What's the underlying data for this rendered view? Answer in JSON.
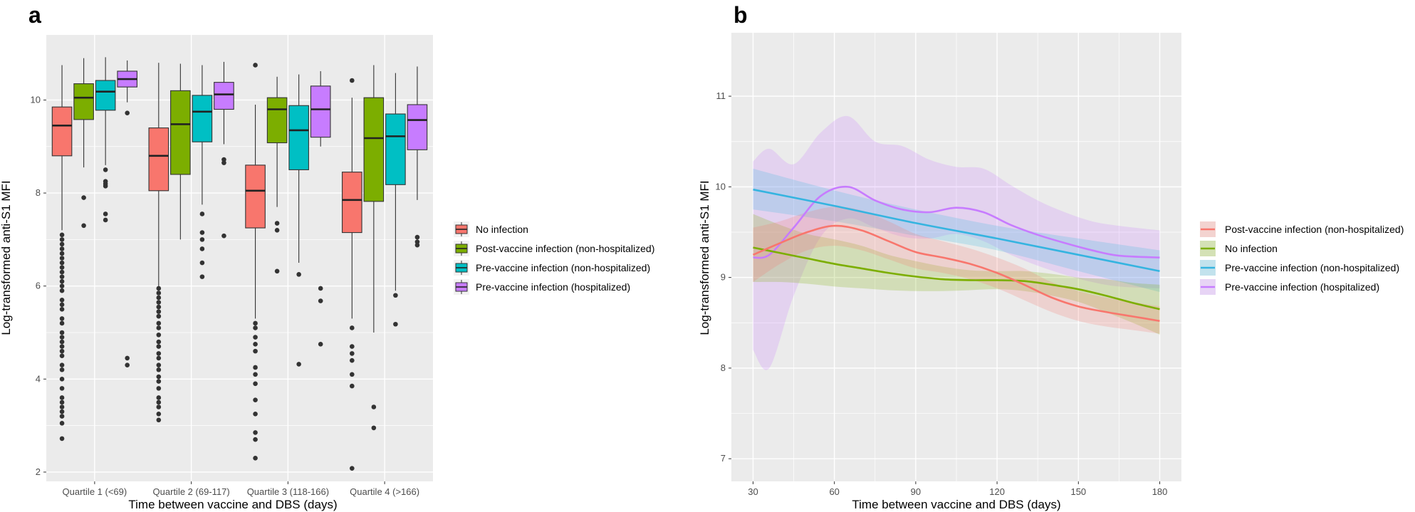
{
  "chart_data": [
    {
      "panel_label": "a",
      "type": "box",
      "xlabel": "Time between vaccine and DBS (days)",
      "ylabel": "Log-transformed anti-S1 MFI",
      "categories": [
        "Quartile 1 (<69)",
        "Quartile 2 (69-117)",
        "Quartile 3 (118-166)",
        "Quartile 4 (>166)"
      ],
      "ylim": [
        1.8,
        11.4
      ],
      "yticks": [
        2,
        4,
        6,
        8,
        10
      ],
      "legend_position": "right",
      "series": [
        {
          "name": "No infection",
          "color": "#F8766D",
          "boxes": [
            {
              "low": 7.2,
              "q1": 8.8,
              "median": 9.45,
              "q3": 9.85,
              "high": 10.75,
              "outliers": [
                7.1,
                7.0,
                6.9,
                6.8,
                6.7,
                6.6,
                6.5,
                6.4,
                6.3,
                6.2,
                6.1,
                6.0,
                5.9,
                5.7,
                5.6,
                5.5,
                5.3,
                5.2,
                5.0,
                4.9,
                4.8,
                4.7,
                4.6,
                4.5,
                4.3,
                4.2,
                4.0,
                3.8,
                3.6,
                3.5,
                3.4,
                3.3,
                3.2,
                3.05,
                2.72
              ]
            },
            {
              "low": 6.0,
              "q1": 8.05,
              "median": 8.8,
              "q3": 9.4,
              "high": 10.8,
              "outliers": [
                5.95,
                5.85,
                5.75,
                5.65,
                5.55,
                5.45,
                5.35,
                5.2,
                5.1,
                4.95,
                4.8,
                4.7,
                4.55,
                4.45,
                4.3,
                4.2,
                4.05,
                3.95,
                3.8,
                3.6,
                3.5,
                3.4,
                3.25,
                3.12
              ]
            },
            {
              "low": 5.3,
              "q1": 7.25,
              "median": 8.05,
              "q3": 8.6,
              "high": 9.9,
              "outliers": [
                10.75,
                5.2,
                5.1,
                4.9,
                4.75,
                4.6,
                4.25,
                4.1,
                3.9,
                3.55,
                3.25,
                2.85,
                2.7,
                2.3
              ]
            },
            {
              "low": 5.3,
              "q1": 7.15,
              "median": 7.85,
              "q3": 8.45,
              "high": 10.05,
              "outliers": [
                10.42,
                5.1,
                4.7,
                4.55,
                4.4,
                4.1,
                3.85,
                2.08
              ]
            }
          ]
        },
        {
          "name": "Post-vaccine infection (non-hospitalized)",
          "color": "#7CAE00",
          "boxes": [
            {
              "low": 8.55,
              "q1": 9.58,
              "median": 10.05,
              "q3": 10.35,
              "high": 10.9,
              "outliers": [
                7.9,
                7.3
              ]
            },
            {
              "low": 7.0,
              "q1": 8.4,
              "median": 9.48,
              "q3": 10.2,
              "high": 10.78,
              "outliers": []
            },
            {
              "low": 7.7,
              "q1": 9.08,
              "median": 9.8,
              "q3": 10.05,
              "high": 10.5,
              "outliers": [
                7.35,
                7.2,
                6.32
              ]
            },
            {
              "low": 5.0,
              "q1": 7.82,
              "median": 9.18,
              "q3": 10.05,
              "high": 10.75,
              "outliers": [
                3.4,
                2.95
              ]
            }
          ]
        },
        {
          "name": "Pre-vaccine infection (non-hospitalized)",
          "color": "#00BFC4",
          "boxes": [
            {
              "low": 8.6,
              "q1": 9.78,
              "median": 10.18,
              "q3": 10.42,
              "high": 10.92,
              "outliers": [
                8.5,
                8.25,
                8.2,
                8.15,
                7.55,
                7.42
              ]
            },
            {
              "low": 7.75,
              "q1": 9.1,
              "median": 9.75,
              "q3": 10.1,
              "high": 10.75,
              "outliers": [
                7.55,
                7.15,
                7.0,
                6.8,
                6.5,
                6.2
              ]
            },
            {
              "low": 6.5,
              "q1": 8.5,
              "median": 9.35,
              "q3": 9.88,
              "high": 10.55,
              "outliers": [
                6.25,
                4.32
              ]
            },
            {
              "low": 5.9,
              "q1": 8.18,
              "median": 9.22,
              "q3": 9.7,
              "high": 10.58,
              "outliers": [
                5.8,
                5.18
              ]
            }
          ]
        },
        {
          "name": "Pre-vaccine infection (hospitalized)",
          "color": "#C77CFF",
          "boxes": [
            {
              "low": 9.95,
              "q1": 10.28,
              "median": 10.45,
              "q3": 10.62,
              "high": 10.85,
              "outliers": [
                9.72,
                4.45,
                4.3
              ]
            },
            {
              "low": 9.05,
              "q1": 9.8,
              "median": 10.12,
              "q3": 10.38,
              "high": 10.82,
              "outliers": [
                8.72,
                8.65,
                7.08
              ]
            },
            {
              "low": 9.0,
              "q1": 9.2,
              "median": 9.8,
              "q3": 10.3,
              "high": 10.62,
              "outliers": [
                5.95,
                5.68,
                4.75
              ]
            },
            {
              "low": 7.85,
              "q1": 8.93,
              "median": 9.57,
              "q3": 9.9,
              "high": 10.72,
              "outliers": [
                7.05,
                6.95,
                6.88
              ]
            }
          ]
        }
      ]
    },
    {
      "panel_label": "b",
      "type": "line",
      "xlabel": "Time between vaccine and DBS (days)",
      "ylabel": "Log-transformed anti-S1 MFI",
      "xlim": [
        22,
        188
      ],
      "xticks": [
        30,
        60,
        90,
        120,
        150,
        180
      ],
      "ylim": [
        6.75,
        11.7
      ],
      "yticks": [
        7,
        8,
        9,
        10,
        11
      ],
      "legend_position": "right",
      "series": [
        {
          "name": "Post-vaccine infection (non-hospitalized)",
          "color": "#F8766D",
          "x": [
            30,
            40,
            50,
            60,
            70,
            80,
            90,
            100,
            110,
            120,
            130,
            140,
            150,
            160,
            170,
            180
          ],
          "y": [
            9.25,
            9.38,
            9.5,
            9.57,
            9.52,
            9.4,
            9.28,
            9.22,
            9.15,
            9.05,
            8.92,
            8.78,
            8.68,
            8.62,
            8.57,
            8.52
          ],
          "lower": [
            8.95,
            9.15,
            9.3,
            9.35,
            9.3,
            9.2,
            9.1,
            9.05,
            8.98,
            8.88,
            8.75,
            8.62,
            8.52,
            8.46,
            8.42,
            8.38
          ],
          "upper": [
            9.55,
            9.62,
            9.72,
            9.78,
            9.74,
            9.62,
            9.48,
            9.4,
            9.32,
            9.22,
            9.1,
            8.95,
            8.85,
            8.78,
            8.73,
            8.68
          ]
        },
        {
          "name": "No infection",
          "color": "#7CAE00",
          "x": [
            30,
            40,
            50,
            60,
            70,
            80,
            90,
            100,
            110,
            120,
            130,
            140,
            150,
            160,
            170,
            180
          ],
          "y": [
            9.33,
            9.27,
            9.21,
            9.15,
            9.1,
            9.05,
            9.01,
            8.98,
            8.97,
            8.97,
            8.96,
            8.92,
            8.87,
            8.8,
            8.72,
            8.65
          ],
          "lower": [
            8.95,
            8.95,
            8.93,
            8.9,
            8.88,
            8.86,
            8.85,
            8.85,
            8.86,
            8.87,
            8.85,
            8.8,
            8.73,
            8.62,
            8.5,
            8.37
          ],
          "upper": [
            9.7,
            9.58,
            9.48,
            9.42,
            9.35,
            9.25,
            9.18,
            9.12,
            9.08,
            9.07,
            9.07,
            9.04,
            9.0,
            8.98,
            8.94,
            8.92
          ]
        },
        {
          "name": "Pre-vaccine infection (non-hospitalized)",
          "color": "#35B4E0",
          "x": [
            30,
            60,
            90,
            120,
            150,
            180
          ],
          "y": [
            9.97,
            9.79,
            9.6,
            9.43,
            9.25,
            9.07
          ],
          "lower": [
            9.75,
            9.62,
            9.46,
            9.3,
            9.07,
            8.84
          ],
          "upper": [
            10.2,
            9.96,
            9.75,
            9.57,
            9.43,
            9.3
          ]
        },
        {
          "name": "Pre-vaccine infection (hospitalized)",
          "color": "#C77CFF",
          "x": [
            30,
            36,
            45,
            55,
            65,
            75,
            85,
            95,
            105,
            115,
            125,
            135,
            145,
            155,
            165,
            180
          ],
          "y": [
            9.22,
            9.25,
            9.55,
            9.9,
            10.0,
            9.85,
            9.75,
            9.72,
            9.77,
            9.72,
            9.58,
            9.47,
            9.38,
            9.3,
            9.24,
            9.22
          ],
          "lower": [
            8.2,
            8.0,
            8.8,
            9.45,
            9.65,
            9.55,
            9.45,
            9.43,
            9.48,
            9.4,
            9.25,
            9.13,
            9.03,
            8.95,
            8.9,
            8.88
          ],
          "upper": [
            10.28,
            10.42,
            10.25,
            10.6,
            10.78,
            10.5,
            10.45,
            10.3,
            10.22,
            10.2,
            10.02,
            9.85,
            9.72,
            9.62,
            9.57,
            9.52
          ]
        }
      ]
    }
  ]
}
